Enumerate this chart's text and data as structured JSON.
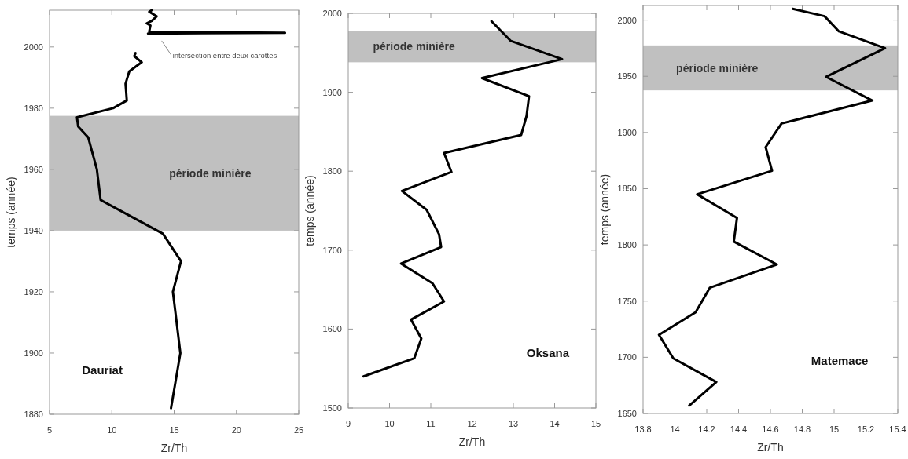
{
  "chart_data": [
    {
      "type": "line",
      "title": "Dauriat",
      "xlabel": "Zr/Th",
      "ylabel": "temps (année)",
      "xlim": [
        5,
        25
      ],
      "ylim": [
        1880,
        2012
      ],
      "xticks": [
        5,
        10,
        15,
        20,
        25
      ],
      "yticks": [
        1880,
        1900,
        1920,
        1940,
        1960,
        1980,
        2000
      ],
      "bands": [
        {
          "axis": "y",
          "from": 1940,
          "to": 1977.5,
          "label": "période minière",
          "color": "#c0c0c0"
        }
      ],
      "annotations": [
        "intersection entre deux carottes"
      ],
      "series": [
        {
          "color": "#000000",
          "x": [
            14.75,
            15.5,
            14.9,
            15.55,
            14.1,
            9.1,
            8.8,
            8.1,
            7.3,
            7.2,
            10.1,
            11.2,
            11.1,
            11.4,
            12.4,
            11.8,
            11.9,
            null,
            12.9,
            23.9,
            13.0,
            13.1,
            12.8,
            13.2,
            13.6,
            13.0,
            13.2
          ],
          "values": [
            1882,
            1900,
            1920,
            1930,
            1939,
            1950,
            1960,
            1970.5,
            1974,
            1977,
            1980,
            1982.5,
            1988,
            1992,
            1995,
            1997,
            1998,
            null,
            2004.4,
            2004.6,
            2005,
            2007,
            2007.7,
            2008.5,
            2010,
            2011.5,
            2012
          ]
        }
      ]
    },
    {
      "type": "line",
      "title": "Oksana",
      "xlabel": "Zr/Th",
      "ylabel": "temps (année)",
      "xlim": [
        9,
        15
      ],
      "ylim": [
        1500,
        2000
      ],
      "xticks": [
        9,
        10,
        11,
        12,
        13,
        14,
        15
      ],
      "yticks": [
        1500,
        1600,
        1700,
        1800,
        1900,
        2000
      ],
      "bands": [
        {
          "axis": "y",
          "from": 1938,
          "to": 1978,
          "label": "période minière",
          "color": "#c0c0c0"
        }
      ],
      "series": [
        {
          "color": "#000000",
          "x": [
            12.47,
            12.94,
            14.18,
            12.24,
            13.38,
            13.32,
            13.19,
            11.32,
            11.5,
            10.3,
            10.9,
            11.2,
            11.25,
            10.28,
            11.04,
            11.32,
            10.52,
            10.77,
            10.6,
            9.37
          ],
          "values": [
            1990,
            1965,
            1942,
            1918,
            1895,
            1870,
            1846,
            1823,
            1799,
            1775,
            1751,
            1720,
            1704,
            1683,
            1658,
            1635,
            1612,
            1588,
            1563,
            1540
          ]
        }
      ]
    },
    {
      "type": "line",
      "title": "Matemace",
      "xlabel": "Zr/Th",
      "ylabel": "temps (année)",
      "xlim": [
        13.8,
        15.4
      ],
      "ylim": [
        1650,
        2013
      ],
      "xticks": [
        13.8,
        14,
        14.2,
        14.4,
        14.6,
        14.8,
        15,
        15.2,
        15.4
      ],
      "yticks": [
        1650,
        1700,
        1750,
        1800,
        1850,
        1900,
        1950,
        2000
      ],
      "bands": [
        {
          "axis": "y",
          "from": 1937.5,
          "to": 1977.5,
          "label": "période minière",
          "color": "#c0c0c0"
        }
      ],
      "series": [
        {
          "color": "#000000",
          "x": [
            14.74,
            14.94,
            15.03,
            15.32,
            14.95,
            15.24,
            14.67,
            14.57,
            14.61,
            14.14,
            14.39,
            14.37,
            14.64,
            14.22,
            14.13,
            13.9,
            13.99,
            14.26,
            14.09
          ],
          "values": [
            2010,
            2003.5,
            1990,
            1975,
            1949.5,
            1928.5,
            1908,
            1887,
            1866,
            1845,
            1824,
            1803,
            1782.6,
            1762,
            1740,
            1720,
            1699,
            1678,
            1657
          ]
        }
      ]
    }
  ]
}
